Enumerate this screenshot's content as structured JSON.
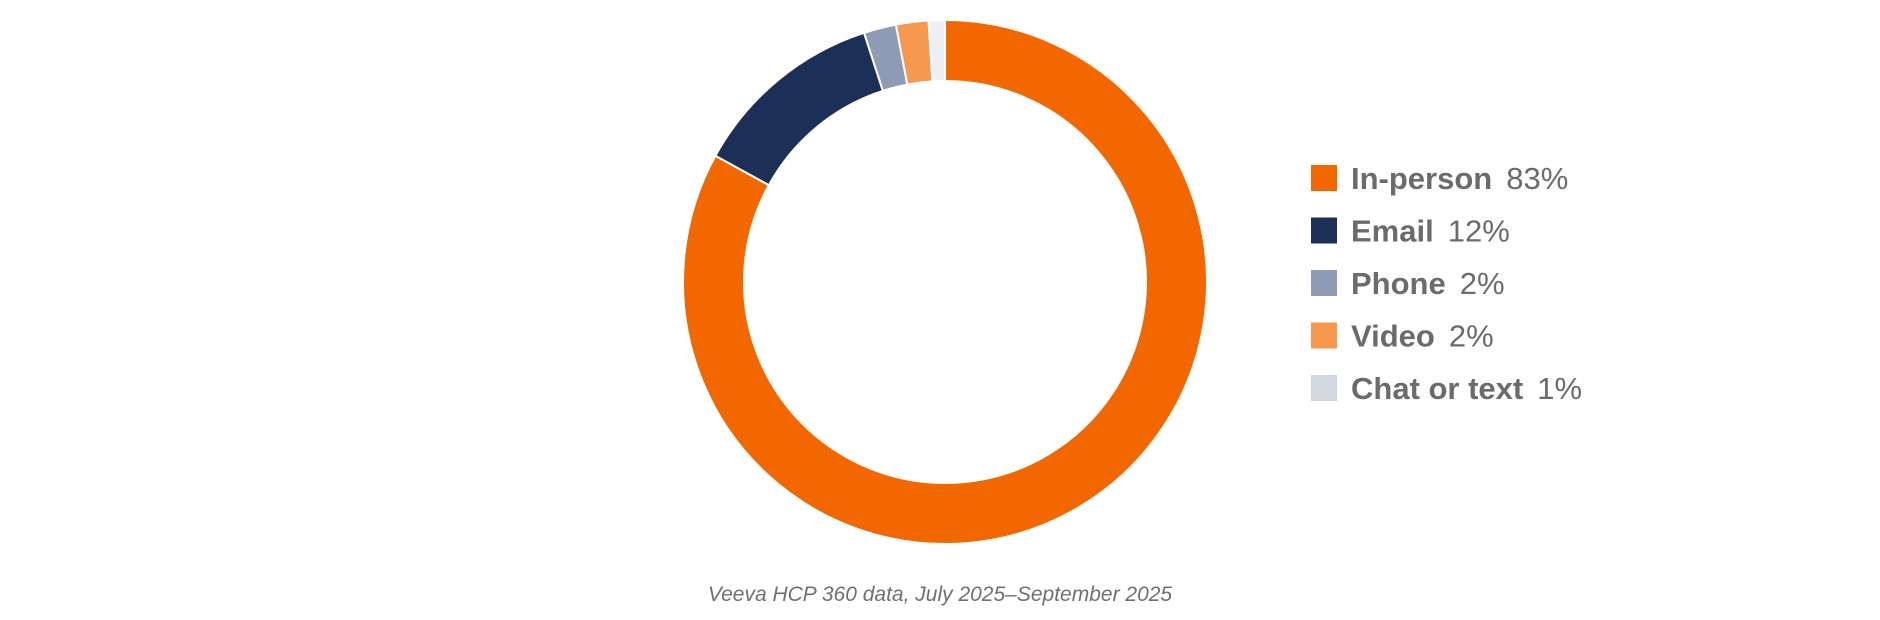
{
  "chart_data": {
    "type": "pie",
    "donut": true,
    "categories": [
      "In-person",
      "Email",
      "Phone",
      "Video",
      "Chat or text"
    ],
    "values": [
      83,
      12,
      2,
      2,
      1
    ],
    "value_labels": [
      "83%",
      "12%",
      "2%",
      "2%",
      "1%"
    ],
    "colors": [
      "#F36700",
      "#1C2F56",
      "#8F9BB5",
      "#F7984F",
      "#EDEFF5"
    ],
    "legend_position": "right",
    "source_note": "Veeva HCP 360 data, July 2025–September 2025"
  }
}
